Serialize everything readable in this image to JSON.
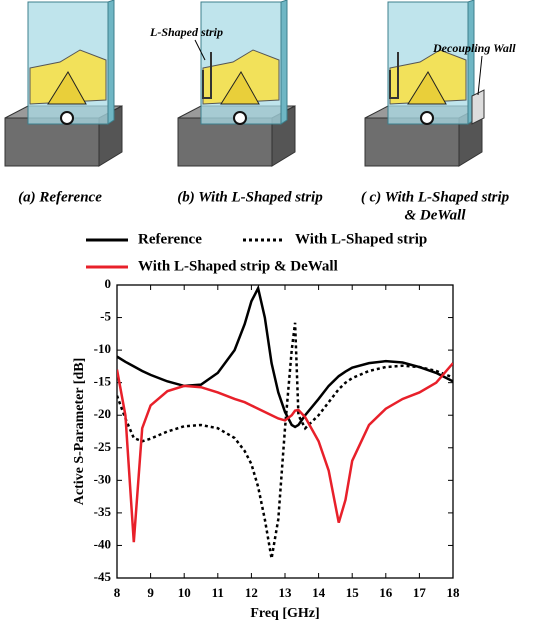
{
  "illustrations": {
    "captions": [
      [
        "(a) Reference"
      ],
      [
        "(b) With L-Shaped strip"
      ],
      [
        "( c) With L-Shaped strip",
        "& DeWall"
      ]
    ],
    "annotations": [
      "L-Shaped strip",
      "Decoupling Wall"
    ]
  },
  "chart_data": {
    "type": "line",
    "x_label": "Freq [GHz]",
    "y_label": "Active S-Parameter [dB]",
    "x": [
      8,
      8.25,
      8.5,
      8.75,
      9,
      9.5,
      10,
      10.5,
      11,
      11.5,
      11.8,
      12,
      12.2,
      12.4,
      12.6,
      12.8,
      13,
      13.2,
      13.3,
      13.4,
      13.6,
      14,
      14.3,
      14.6,
      14.8,
      15,
      15.5,
      16,
      16.5,
      17,
      17.5,
      18
    ],
    "series": [
      {
        "name": "Reference",
        "color": "#000000",
        "line_style": "solid",
        "values": [
          -11,
          -11.8,
          -12.5,
          -13.2,
          -13.8,
          -14.8,
          -15.5,
          -15.3,
          -13.5,
          -10,
          -6,
          -2.5,
          -0.5,
          -5,
          -12,
          -16.5,
          -19.5,
          -21.5,
          -21.8,
          -21.5,
          -20,
          -17.5,
          -15.5,
          -14,
          -13.3,
          -12.7,
          -12,
          -11.7,
          -11.9,
          -12.6,
          -13.5,
          -14.8
        ]
      },
      {
        "name": "With L-Shaped strip",
        "color": "#000000",
        "line_style": "dotted",
        "values": [
          -17,
          -20.5,
          -23.5,
          -24,
          -23.6,
          -22.5,
          -21.7,
          -21.5,
          -22,
          -23.5,
          -25.5,
          -27.5,
          -31,
          -36,
          -42,
          -36,
          -22,
          -10,
          -5.8,
          -20,
          -22,
          -20,
          -18,
          -16,
          -15,
          -14.3,
          -13.2,
          -12.6,
          -12.4,
          -12.6,
          -13.2,
          -14.2
        ]
      },
      {
        "name": "With L-Shaped strip & DeWall",
        "color": "#e8202a",
        "line_style": "solid",
        "values": [
          -13,
          -20,
          -39.5,
          -22,
          -18.5,
          -16.3,
          -15.5,
          -15.7,
          -16.5,
          -17.5,
          -18,
          -18.5,
          -19,
          -19.5,
          -20,
          -20.5,
          -20.8,
          -20,
          -19.3,
          -19.2,
          -20.3,
          -24,
          -28.5,
          -36.5,
          -33,
          -27,
          -21.5,
          -19,
          -17.5,
          -16.5,
          -15,
          -12
        ]
      }
    ],
    "xlim": [
      8,
      18
    ],
    "xticks": [
      8,
      9,
      10,
      11,
      12,
      13,
      14,
      15,
      16,
      17,
      18
    ],
    "ylim": [
      -45,
      0
    ],
    "yticks": [
      -45,
      -40,
      -35,
      -30,
      -25,
      -20,
      -15,
      -10,
      -5,
      0
    ]
  }
}
